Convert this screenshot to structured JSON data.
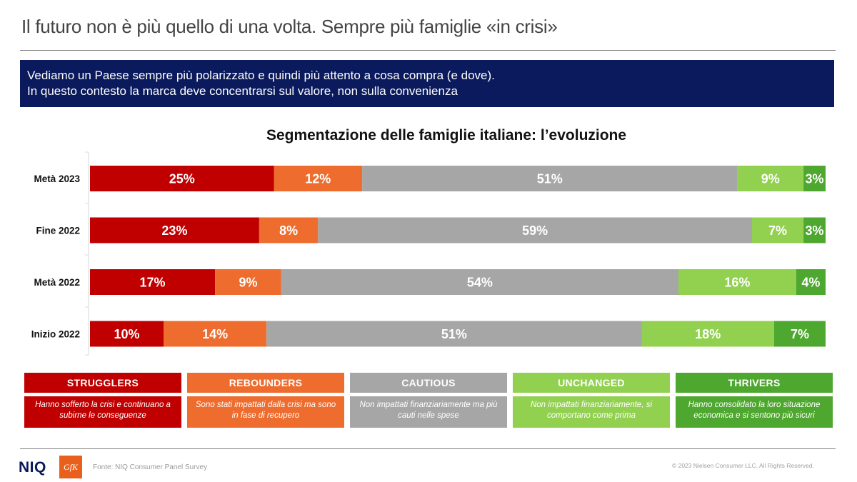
{
  "header": {
    "title": "Il futuro non è più quello di una volta. Sempre più famiglie «in crisi»"
  },
  "banner": {
    "line1": "Vediamo un Paese sempre più polarizzato  e quindi più attento a cosa compra (e dove).",
    "line2": "In questo contesto la marca deve concentrarsi sul valore, non sulla convenienza"
  },
  "chart_data": {
    "type": "bar",
    "orientation": "horizontal",
    "stacked": true,
    "title": "Segmentazione delle famiglie italiane: l’evoluzione",
    "categories": [
      "Metà 2023",
      "Fine 2022",
      "Metà 2022",
      "Inizio 2022"
    ],
    "series": [
      {
        "name": "STRUGGLERS",
        "color": "#c00000",
        "values": [
          25,
          23,
          17,
          10
        ]
      },
      {
        "name": "REBOUNDERS",
        "color": "#ed6c2e",
        "values": [
          12,
          8,
          9,
          14
        ]
      },
      {
        "name": "CAUTIOUS",
        "color": "#a6a6a6",
        "values": [
          51,
          59,
          54,
          51
        ]
      },
      {
        "name": "UNCHANGED",
        "color": "#92d050",
        "values": [
          9,
          7,
          16,
          18
        ]
      },
      {
        "name": "THRIVERS",
        "color": "#4ea72e",
        "values": [
          3,
          3,
          4,
          7
        ]
      }
    ],
    "value_suffix": "%",
    "xlim": [
      0,
      100
    ]
  },
  "legend": [
    {
      "name": "STRUGGLERS",
      "head_color": "#c00000",
      "desc_color": "#c00000",
      "desc": "Hanno sofferto la crisi e continuano a subirne le conseguenze"
    },
    {
      "name": "REBOUNDERS",
      "head_color": "#ed6c2e",
      "desc_color": "#ed6c2e",
      "desc": "Sono stati impattati dalla crisi ma sono in fase di recupero"
    },
    {
      "name": "CAUTIOUS",
      "head_color": "#a6a6a6",
      "desc_color": "#a6a6a6",
      "desc": "Non impattati finanziariamente ma più cauti nelle spese"
    },
    {
      "name": "UNCHANGED",
      "head_color": "#92d050",
      "desc_color": "#92d050",
      "desc": "Non impattati finanziariamente, si comportano come prima"
    },
    {
      "name": "THRIVERS",
      "head_color": "#4ea72e",
      "desc_color": "#4ea72e",
      "desc": "Hanno consolidato la loro situazione economica e si sentono più sicuri"
    }
  ],
  "footer": {
    "brand": "NIQ",
    "partner_logo": "GfK",
    "source": "Fonte: NIQ Consumer Panel Survey",
    "copyright": "© 2023 Nielsen Consumer LLC. All Rights Reserved."
  }
}
